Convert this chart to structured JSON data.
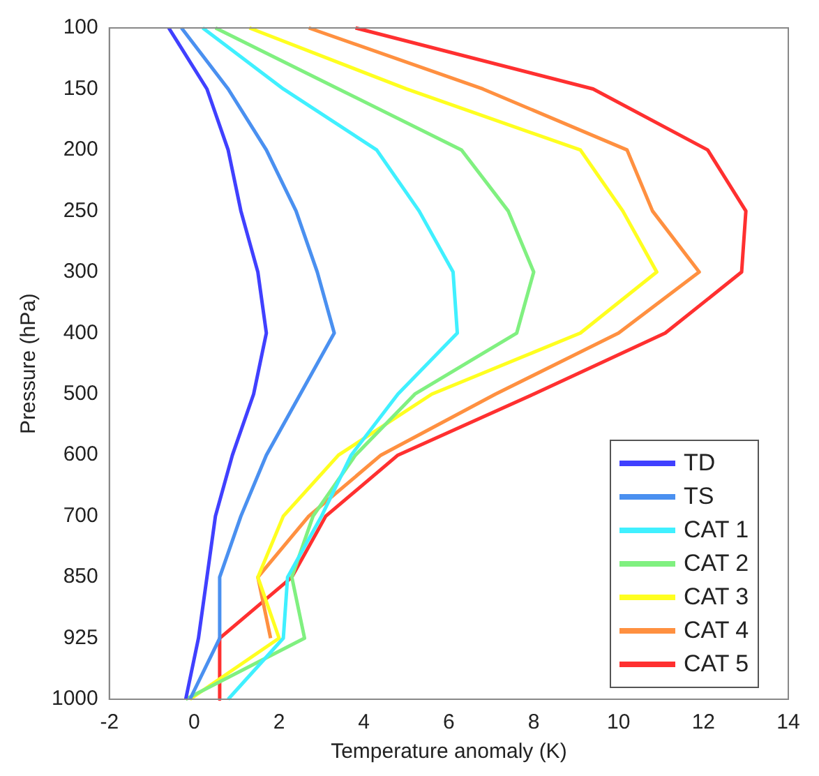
{
  "chart_data": {
    "type": "line",
    "orientation": "horizontal",
    "xlabel": "Temperature anomaly (K)",
    "ylabel": "Pressure (hPa)",
    "categories": [
      "100",
      "150",
      "200",
      "250",
      "300",
      "400",
      "500",
      "600",
      "700",
      "850",
      "925",
      "1000"
    ],
    "xlim": [
      -2,
      14
    ],
    "xticks": [
      -2,
      0,
      2,
      4,
      6,
      8,
      10,
      12,
      14
    ],
    "grid": false,
    "legend": "bottom right",
    "marker": "none",
    "series": [
      {
        "name": "TD",
        "color": "#4040ff",
        "values": [
          -0.6,
          0.3,
          0.8,
          1.1,
          1.5,
          1.7,
          1.4,
          0.9,
          0.5,
          0.3,
          0.1,
          -0.2
        ]
      },
      {
        "name": "TS",
        "color": "#4a90f0",
        "values": [
          -0.3,
          0.8,
          1.7,
          2.4,
          2.9,
          3.3,
          2.5,
          1.7,
          1.1,
          0.6,
          0.6,
          -0.1
        ]
      },
      {
        "name": "CAT 1",
        "color": "#40f0ff",
        "values": [
          0.2,
          2.1,
          4.3,
          5.3,
          6.1,
          6.2,
          4.8,
          3.7,
          3.0,
          2.2,
          2.1,
          0.8
        ]
      },
      {
        "name": "CAT 2",
        "color": "#80f080",
        "values": [
          0.5,
          3.4,
          6.3,
          7.4,
          8.0,
          7.6,
          5.2,
          3.8,
          2.8,
          2.3,
          2.6,
          -0.2
        ]
      },
      {
        "name": "CAT 3",
        "color": "#ffff20",
        "values": [
          1.3,
          5.0,
          9.1,
          10.1,
          10.9,
          9.1,
          5.6,
          3.4,
          2.1,
          1.5,
          2.0,
          -0.1
        ]
      },
      {
        "name": "CAT 4",
        "color": "#ff9040",
        "values": [
          2.7,
          6.8,
          10.2,
          10.8,
          11.9,
          10.0,
          7.1,
          4.4,
          2.7,
          1.5,
          1.8,
          null
        ]
      },
      {
        "name": "CAT 5",
        "color": "#ff3030",
        "values": [
          3.8,
          9.4,
          12.1,
          13.0,
          12.9,
          11.1,
          8.0,
          4.8,
          3.1,
          2.3,
          0.6,
          0.6
        ]
      }
    ]
  }
}
